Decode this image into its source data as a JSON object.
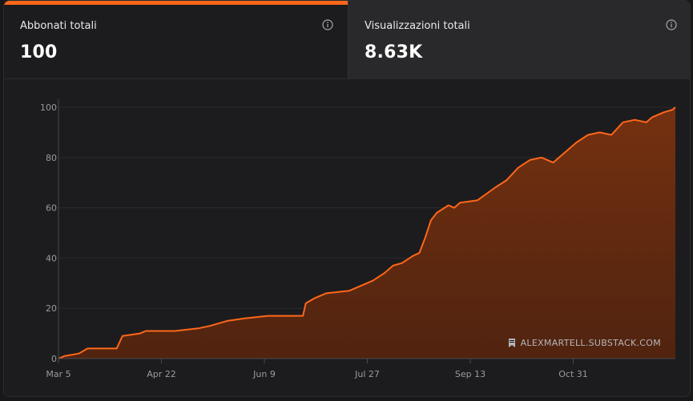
{
  "tabs": [
    {
      "label": "Abbonati totali",
      "value": "100",
      "active": true
    },
    {
      "label": "Visualizzazioni totali",
      "value": "8.63K",
      "active": false
    }
  ],
  "watermark": "ALEXMARTELL.SUBSTACK.COM",
  "colors": {
    "accent": "#ff6719",
    "area_fill": "#7a3210"
  },
  "chart_data": {
    "type": "area",
    "x_tick_labels": [
      "Mar 5",
      "Apr 22",
      "Jun 9",
      "Jul 27",
      "Sep 13",
      "Oct 31"
    ],
    "y_ticks": [
      0,
      20,
      40,
      60,
      80,
      100
    ],
    "ylim": [
      0,
      100
    ],
    "grid": true,
    "series": [
      {
        "points": [
          [
            0,
            0
          ],
          [
            2,
            1
          ],
          [
            7,
            2
          ],
          [
            10,
            4
          ],
          [
            20,
            4
          ],
          [
            22,
            9
          ],
          [
            28,
            10
          ],
          [
            30,
            11
          ],
          [
            40,
            11
          ],
          [
            48,
            12
          ],
          [
            52,
            13
          ],
          [
            58,
            15
          ],
          [
            64,
            16
          ],
          [
            72,
            17
          ],
          [
            84,
            17
          ],
          [
            85,
            22
          ],
          [
            88,
            24
          ],
          [
            92,
            26
          ],
          [
            100,
            27
          ],
          [
            104,
            29
          ],
          [
            108,
            31
          ],
          [
            112,
            34
          ],
          [
            115,
            37
          ],
          [
            118,
            38
          ],
          [
            122,
            41
          ],
          [
            124,
            42
          ],
          [
            126,
            48
          ],
          [
            128,
            55
          ],
          [
            130,
            58
          ],
          [
            134,
            61
          ],
          [
            136,
            60
          ],
          [
            138,
            62
          ],
          [
            144,
            63
          ],
          [
            150,
            68
          ],
          [
            154,
            71
          ],
          [
            158,
            76
          ],
          [
            162,
            79
          ],
          [
            166,
            80
          ],
          [
            170,
            78
          ],
          [
            174,
            82
          ],
          [
            178,
            86
          ],
          [
            182,
            89
          ],
          [
            186,
            90
          ],
          [
            190,
            89
          ],
          [
            194,
            94
          ],
          [
            198,
            95
          ],
          [
            202,
            94
          ],
          [
            204,
            96
          ],
          [
            206,
            97
          ],
          [
            208,
            98
          ],
          [
            211,
            99
          ],
          [
            212,
            100
          ]
        ]
      }
    ]
  }
}
